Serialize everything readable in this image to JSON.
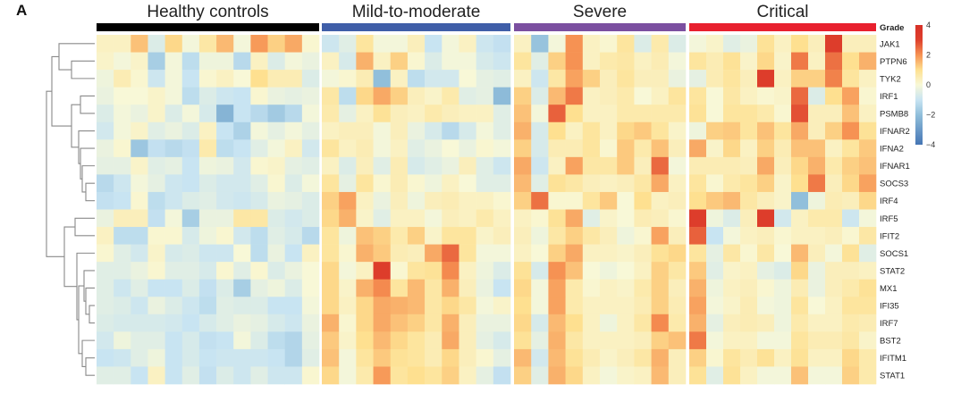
{
  "panel_label": "A",
  "chart_data": {
    "type": "heatmap",
    "title": "",
    "annotation_label": "Grade",
    "groups": [
      {
        "name": "Healthy controls",
        "color": "#000000",
        "n": 13
      },
      {
        "name": "Mild-to-moderate",
        "color": "#3f5ea8",
        "n": 11
      },
      {
        "name": "Severe",
        "color": "#7b4fa0",
        "n": 10
      },
      {
        "name": "Critical",
        "color": "#e8202e",
        "n": 11
      }
    ],
    "genes": [
      "JAK1",
      "PTPN6",
      "TYK2",
      "IRF1",
      "PSMB8",
      "IFNAR2",
      "IFNA2",
      "IFNAR1",
      "SOCS3",
      "IRF4",
      "IRF5",
      "IFIT2",
      "SOCS1",
      "STAT2",
      "MX1",
      "IFI35",
      "IRF7",
      "BST2",
      "IFITM1",
      "STAT1"
    ],
    "colorbar": {
      "range": [
        -4,
        4
      ],
      "ticks": [
        4,
        2,
        0,
        -2,
        -4
      ],
      "tick_labels": [
        "4",
        "2",
        "0",
        "−2",
        "−4"
      ],
      "colors": {
        "low": "#4575b4",
        "mid": "#ffffbf",
        "high": "#d73027"
      }
    },
    "dendrogram": "row clustering (left side)",
    "values": {
      "Healthy controls": [
        [
          0.3,
          0.3,
          1.4,
          -0.6,
          1.1,
          -0.1,
          0.7,
          1.5,
          -0.1,
          1.9,
          1.2,
          1.7,
          0.1
        ],
        [
          0.2,
          -0.1,
          0.2,
          -1.6,
          -0.1,
          -1.2,
          -0.2,
          -0.2,
          -1.3,
          0.3,
          -0.6,
          -0.1,
          -0.3
        ],
        [
          -0.2,
          0.5,
          0.1,
          -0.9,
          -0.1,
          -1.0,
          0.1,
          0.3,
          0.0,
          1.0,
          0.5,
          0.5,
          -0.6
        ],
        [
          -0.3,
          0.0,
          0.0,
          0.2,
          -0.1,
          -1.2,
          -0.6,
          -0.9,
          -1.0,
          0.1,
          -0.3,
          -0.4,
          -0.3
        ],
        [
          -0.6,
          -0.1,
          -0.3,
          0.2,
          -0.6,
          -0.1,
          -0.7,
          -2.3,
          -1.0,
          -1.3,
          -1.7,
          -1.3,
          -0.1
        ],
        [
          -0.8,
          -0.1,
          0.2,
          -0.5,
          -0.3,
          -0.6,
          0.3,
          -1.0,
          -1.5,
          -0.1,
          -0.4,
          -0.1,
          -0.4
        ],
        [
          -0.3,
          0.1,
          -1.8,
          -1.1,
          -1.3,
          -1.1,
          0.6,
          -1.2,
          -1.0,
          -0.5,
          -0.1,
          0.3,
          -0.8
        ],
        [
          -0.4,
          -0.4,
          0.2,
          -0.5,
          -0.4,
          -1.0,
          -0.2,
          -0.3,
          -0.8,
          0.1,
          0.2,
          -0.4,
          -0.5
        ],
        [
          -1.3,
          -0.9,
          -0.1,
          -0.4,
          -0.9,
          -1.0,
          -0.6,
          -0.8,
          -0.8,
          -0.5,
          0.1,
          -0.6,
          -0.1
        ],
        [
          -1.1,
          -1.0,
          0.1,
          -1.2,
          -0.9,
          -0.6,
          -0.5,
          -0.8,
          -0.9,
          -0.7,
          -0.3,
          -0.4,
          -0.6
        ],
        [
          -0.3,
          0.4,
          0.4,
          -1.1,
          -0.1,
          -1.6,
          -0.3,
          -0.3,
          0.7,
          0.7,
          -0.6,
          -0.8,
          -0.6
        ],
        [
          0.3,
          -1.2,
          -1.2,
          0.1,
          0.1,
          -0.7,
          -0.2,
          0.1,
          -0.8,
          -1.2,
          -0.5,
          -0.7,
          -1.3
        ],
        [
          0.1,
          -0.5,
          -0.8,
          0.2,
          -0.7,
          -0.6,
          -0.9,
          -0.9,
          0.0,
          -1.2,
          -0.3,
          -1.0,
          0.3
        ],
        [
          -0.5,
          -0.5,
          -0.3,
          0.1,
          -0.5,
          -0.5,
          -0.7,
          0.1,
          -0.5,
          0.1,
          -0.6,
          -0.3,
          0.0
        ],
        [
          -0.5,
          -0.9,
          -0.5,
          -1.0,
          -1.0,
          -0.6,
          -1.1,
          -0.6,
          -1.6,
          -0.4,
          -0.2,
          -0.6,
          0.0
        ],
        [
          -0.5,
          -0.6,
          -0.9,
          -0.3,
          -0.6,
          -0.9,
          -1.2,
          -0.5,
          -0.6,
          -0.6,
          -1.0,
          -1.0,
          -0.1
        ],
        [
          -0.6,
          -0.7,
          -0.7,
          -0.7,
          -0.8,
          -1.0,
          -0.7,
          -0.5,
          -0.3,
          -0.4,
          -0.7,
          -0.9,
          -0.3
        ],
        [
          -0.8,
          -0.2,
          -0.5,
          -0.5,
          -1.0,
          -0.7,
          -1.1,
          -1.0,
          -0.1,
          -0.6,
          -1.2,
          -1.4,
          -0.4
        ],
        [
          -1.0,
          -0.9,
          -0.5,
          -0.2,
          -1.0,
          -0.7,
          -1.0,
          -0.9,
          -0.9,
          -0.9,
          -1.0,
          -1.4,
          -0.5
        ],
        [
          -0.5,
          -0.5,
          -1.0,
          0.3,
          -1.0,
          -0.5,
          -1.1,
          -0.6,
          -0.9,
          -0.5,
          -0.9,
          -0.9,
          0.1
        ]
      ],
      "Mild-to-moderate": [
        [
          -0.9,
          -0.5,
          0.8,
          -0.1,
          -0.1,
          0.4,
          -1.0,
          -0.1,
          0.3,
          -0.9,
          -1.1
        ],
        [
          0.3,
          -0.7,
          1.6,
          0.3,
          1.2,
          0.1,
          -0.6,
          -0.1,
          -0.1,
          -0.7,
          -0.9
        ],
        [
          -0.1,
          0.1,
          0.5,
          -2.0,
          0.3,
          -1.2,
          -0.8,
          -0.8,
          0.0,
          -0.4,
          -0.5
        ],
        [
          0.7,
          -1.2,
          1.1,
          1.7,
          1.2,
          0.4,
          0.2,
          0.6,
          -0.5,
          -0.4,
          -2.1
        ],
        [
          0.6,
          -0.4,
          0.3,
          0.9,
          0.4,
          0.3,
          0.6,
          0.4,
          0.3,
          0.3,
          -0.5
        ],
        [
          0.3,
          0.4,
          0.4,
          -0.1,
          0.4,
          -0.3,
          -0.7,
          -1.3,
          -0.7,
          -0.1,
          -0.5
        ],
        [
          0.8,
          0.3,
          0.5,
          -0.1,
          0.3,
          -0.5,
          -0.3,
          0.0,
          -0.3,
          0.1,
          -0.1
        ],
        [
          0.3,
          -0.6,
          0.4,
          -0.5,
          0.5,
          -0.7,
          -0.5,
          -0.3,
          0.4,
          -0.5,
          -0.9
        ],
        [
          0.8,
          -0.4,
          0.8,
          0.1,
          0.5,
          0.1,
          -0.2,
          0.3,
          0.0,
          -0.5,
          -0.5
        ],
        [
          1.2,
          1.8,
          0.3,
          -0.3,
          0.4,
          -0.2,
          0.4,
          0.5,
          0.3,
          0.3,
          0.1
        ],
        [
          1.1,
          1.6,
          0.2,
          -0.5,
          0.3,
          0.3,
          -0.1,
          0.4,
          0.3,
          0.6,
          0.3
        ],
        [
          0.8,
          -0.2,
          1.4,
          1.2,
          0.6,
          1.2,
          0.2,
          0.8,
          0.8,
          0.2,
          0.4
        ],
        [
          0.8,
          0.1,
          1.6,
          1.3,
          0.5,
          0.4,
          1.7,
          2.5,
          0.8,
          -0.1,
          -0.1
        ],
        [
          1.1,
          -0.1,
          0.3,
          3.2,
          0.1,
          0.8,
          0.9,
          2.1,
          0.3,
          -0.2,
          -0.6
        ],
        [
          1.1,
          0.2,
          1.6,
          2.1,
          0.8,
          1.5,
          0.7,
          1.6,
          0.4,
          -0.3,
          -1.0
        ],
        [
          1.1,
          0.3,
          1.1,
          1.7,
          1.6,
          1.5,
          0.7,
          1.1,
          0.7,
          -0.1,
          0.2
        ],
        [
          1.6,
          0.1,
          1.1,
          1.7,
          1.4,
          1.2,
          0.7,
          1.6,
          0.4,
          -0.3,
          -0.3
        ],
        [
          1.3,
          0.2,
          1.0,
          1.5,
          1.1,
          0.8,
          0.5,
          1.7,
          0.4,
          -0.4,
          -0.7
        ],
        [
          1.4,
          -0.1,
          0.8,
          1.3,
          0.9,
          0.8,
          0.5,
          1.1,
          0.4,
          0.1,
          -0.4
        ],
        [
          1.1,
          -0.1,
          0.6,
          1.9,
          0.8,
          1.0,
          0.8,
          1.2,
          0.3,
          -0.4,
          -1.1
        ]
      ],
      "Severe": [
        [
          0.3,
          -1.9,
          -0.1,
          2.0,
          0.3,
          0.1,
          0.8,
          -0.6,
          0.6,
          -0.6
        ],
        [
          0.8,
          -0.5,
          1.2,
          2.0,
          0.3,
          0.6,
          0.7,
          0.3,
          0.5,
          -0.1
        ],
        [
          0.3,
          -0.9,
          0.7,
          1.8,
          1.2,
          0.4,
          0.8,
          0.4,
          0.4,
          -0.3
        ],
        [
          1.2,
          -0.6,
          1.5,
          2.3,
          0.3,
          0.4,
          0.6,
          0.0,
          0.3,
          0.8
        ],
        [
          1.4,
          -0.1,
          2.6,
          1.0,
          0.3,
          0.3,
          0.6,
          0.6,
          0.6,
          0.6
        ],
        [
          1.6,
          -0.7,
          1.0,
          0.3,
          0.8,
          0.3,
          1.1,
          1.3,
          0.8,
          0.2
        ],
        [
          1.2,
          -0.7,
          0.5,
          0.5,
          0.8,
          0.1,
          1.3,
          0.6,
          1.4,
          0.4
        ],
        [
          1.7,
          -0.9,
          0.3,
          1.8,
          0.7,
          0.7,
          1.3,
          0.4,
          2.5,
          -0.1
        ],
        [
          1.5,
          -0.5,
          0.9,
          0.7,
          0.4,
          0.3,
          0.4,
          0.7,
          1.7,
          0.3
        ],
        [
          1.2,
          2.4,
          0.1,
          0.1,
          0.8,
          1.3,
          0.0,
          1.0,
          0.3,
          0.4
        ],
        [
          0.3,
          0.1,
          0.9,
          1.7,
          -0.5,
          0.2,
          0.0,
          0.5,
          0.4,
          0.1
        ],
        [
          0.4,
          -0.2,
          0.7,
          1.2,
          0.7,
          0.4,
          -0.2,
          0.1,
          1.8,
          0.4
        ],
        [
          0.3,
          0.0,
          1.2,
          1.7,
          0.3,
          0.3,
          0.2,
          0.4,
          0.9,
          1.1
        ],
        [
          0.9,
          -0.7,
          2.0,
          1.4,
          0.0,
          -0.2,
          0.0,
          0.3,
          1.2,
          0.7
        ],
        [
          1.1,
          -0.1,
          1.8,
          0.6,
          0.1,
          0.3,
          0.2,
          0.6,
          1.2,
          0.4
        ],
        [
          1.0,
          -0.1,
          1.8,
          0.6,
          0.3,
          0.3,
          0.3,
          0.5,
          1.2,
          0.5
        ],
        [
          1.1,
          -0.7,
          1.5,
          1.0,
          0.3,
          -0.2,
          0.3,
          0.7,
          2.1,
          0.6
        ],
        [
          0.9,
          -0.4,
          1.6,
          0.7,
          0.3,
          0.3,
          0.3,
          0.4,
          1.2,
          1.4
        ],
        [
          1.5,
          -0.8,
          1.5,
          0.9,
          0.5,
          0.2,
          0.4,
          0.7,
          1.6,
          0.4
        ],
        [
          1.2,
          -0.5,
          1.6,
          1.1,
          0.3,
          -0.1,
          0.2,
          0.3,
          1.5,
          0.4
        ]
      ],
      "Critical": [
        [
          -0.1,
          0.2,
          -0.5,
          -0.3,
          0.9,
          0.3,
          1.0,
          0.4,
          3.2,
          0.4,
          0.4
        ],
        [
          0.8,
          0.5,
          0.9,
          0.2,
          1.1,
          0.2,
          2.3,
          0.3,
          2.4,
          1.0,
          1.6
        ],
        [
          -0.4,
          0.5,
          0.8,
          0.4,
          3.2,
          0.3,
          1.2,
          1.2,
          2.2,
          0.8,
          0.3
        ],
        [
          0.8,
          0.0,
          0.7,
          0.3,
          0.1,
          0.2,
          2.5,
          -0.6,
          1.0,
          1.8,
          0.1
        ],
        [
          0.9,
          0.0,
          0.8,
          0.8,
          0.6,
          0.1,
          2.8,
          0.4,
          0.4,
          1.4,
          0.3
        ],
        [
          -0.2,
          1.2,
          1.3,
          0.8,
          1.4,
          0.8,
          1.7,
          0.4,
          1.2,
          2.0,
          0.9
        ],
        [
          1.7,
          0.2,
          1.1,
          0.3,
          1.2,
          0.5,
          1.4,
          1.4,
          0.3,
          0.8,
          1.3
        ],
        [
          0.5,
          0.5,
          0.5,
          0.4,
          1.7,
          0.4,
          1.1,
          1.6,
          0.6,
          1.2,
          1.4
        ],
        [
          0.8,
          0.1,
          0.6,
          0.8,
          1.2,
          0.2,
          1.0,
          2.3,
          0.4,
          1.1,
          1.8
        ],
        [
          1.0,
          1.3,
          1.5,
          0.7,
          0.4,
          0.2,
          -2.0,
          -0.2,
          0.5,
          0.4,
          1.1
        ],
        [
          3.2,
          -0.2,
          -0.6,
          0.4,
          3.2,
          -0.8,
          0.3,
          0.6,
          0.6,
          -0.9,
          -0.1
        ],
        [
          2.6,
          -1.0,
          -0.1,
          0.3,
          0.4,
          0.1,
          0.3,
          0.3,
          0.4,
          0.1,
          0.7
        ],
        [
          0.8,
          -0.4,
          0.7,
          0.1,
          0.7,
          0.0,
          1.5,
          0.4,
          -0.1,
          0.9,
          -0.5
        ],
        [
          1.3,
          -0.5,
          0.2,
          0.3,
          -0.4,
          -0.6,
          1.1,
          -0.3,
          0.4,
          0.4,
          0.3
        ],
        [
          1.6,
          -0.2,
          0.3,
          0.4,
          0.1,
          -0.2,
          0.5,
          -0.3,
          0.4,
          0.6,
          0.9
        ],
        [
          1.8,
          -0.1,
          0.2,
          0.5,
          -0.1,
          -0.2,
          0.8,
          0.0,
          0.3,
          0.8,
          0.8
        ],
        [
          1.6,
          -0.4,
          0.4,
          0.5,
          0.4,
          -0.2,
          0.6,
          0.3,
          0.3,
          0.6,
          0.5
        ],
        [
          2.3,
          -0.1,
          0.3,
          0.3,
          -0.1,
          -0.1,
          0.8,
          0.5,
          0.5,
          0.7,
          0.2
        ],
        [
          1.2,
          0.1,
          0.8,
          0.5,
          0.9,
          0.3,
          0.9,
          0.3,
          0.3,
          1.1,
          0.6
        ],
        [
          0.9,
          -0.5,
          0.9,
          0.3,
          -0.1,
          -0.1,
          1.4,
          -0.1,
          -0.1,
          1.2,
          0.6
        ]
      ]
    }
  }
}
